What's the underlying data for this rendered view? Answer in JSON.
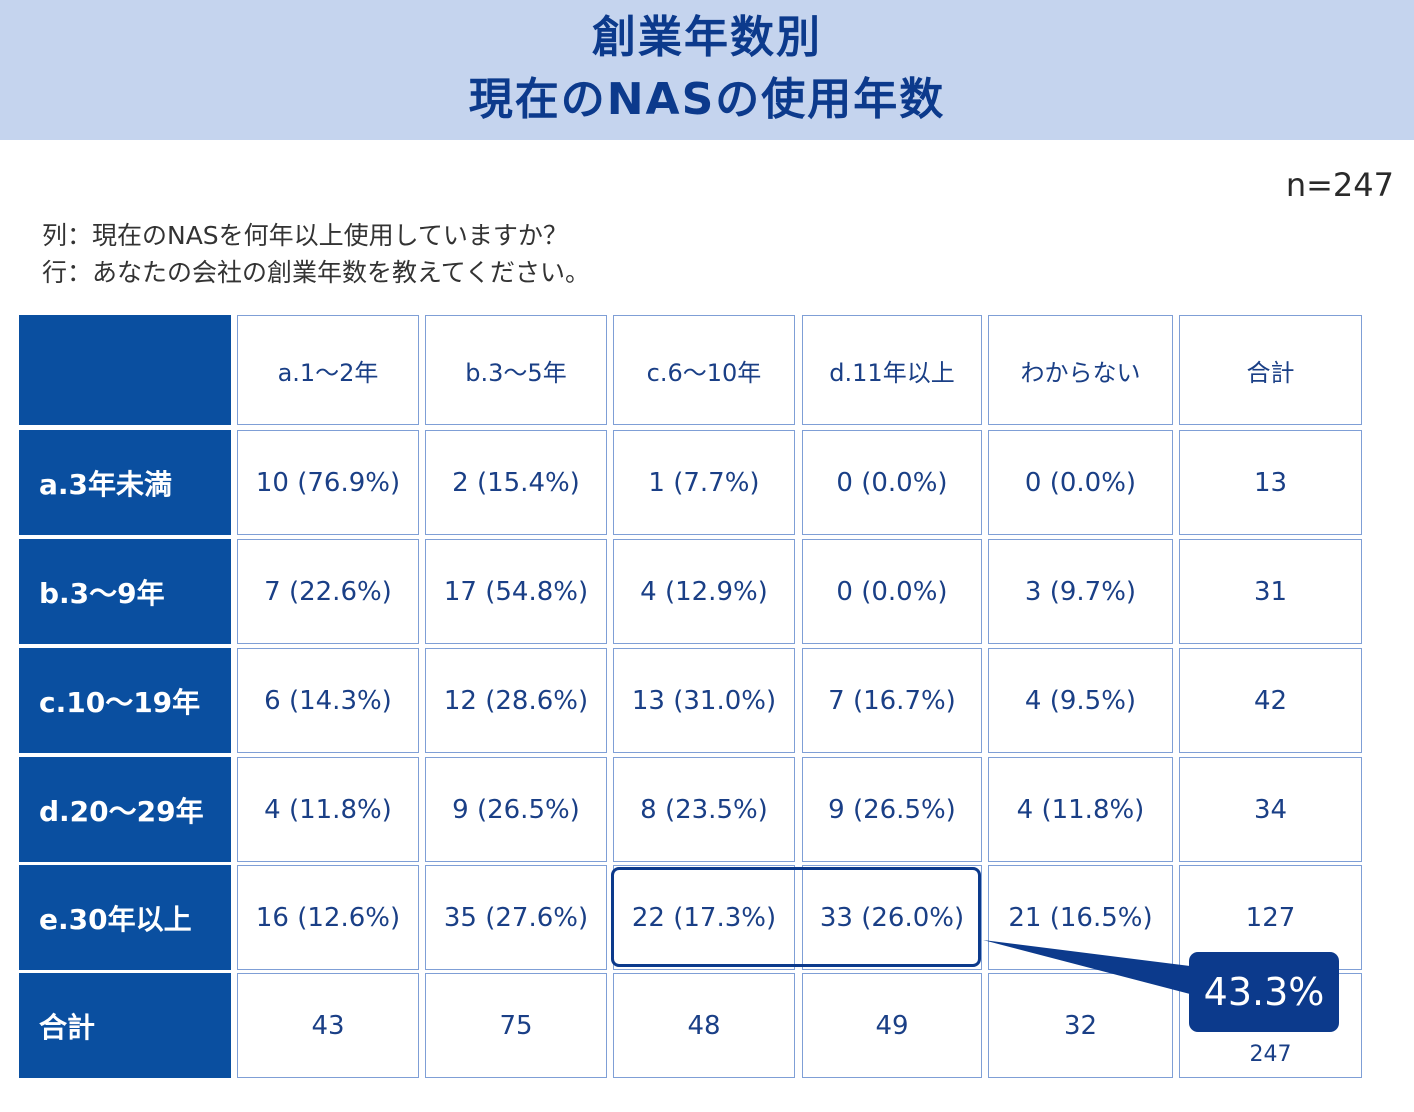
{
  "title": {
    "line1": "創業年数別",
    "line2": "現在のNASの使用年数"
  },
  "sample_size": "n=247",
  "question": {
    "columns": "列：現在のNASを何年以上使用していますか？",
    "rows": "行：あなたの会社の創業年数を教えてください。"
  },
  "colors": {
    "header_bg": "#c5d4ee",
    "title": "#0c3a8c",
    "row_header_bg": "#0a4fa0",
    "cell_text": "#1a3f86",
    "border": "#7f9fd6"
  },
  "highlight": {
    "cells": [
      "22 (17.3%)",
      "33 (26.0%)"
    ],
    "value": "43.3%"
  },
  "chart_data": {
    "type": "table",
    "col_headers": [
      "a.1〜2年",
      "b.3〜5年",
      "c.6〜10年",
      "d.11年以上",
      "わからない",
      "合計"
    ],
    "rows": [
      {
        "label": "a.3年未満",
        "cells": [
          "10 (76.9%)",
          "2 (15.4%)",
          "1 (7.7%)",
          "0 (0.0%)",
          "0 (0.0%)",
          "13"
        ]
      },
      {
        "label": "b.3〜9年",
        "cells": [
          "7 (22.6%)",
          "17 (54.8%)",
          "4 (12.9%)",
          "0 (0.0%)",
          "3 (9.7%)",
          "31"
        ]
      },
      {
        "label": "c.10〜19年",
        "cells": [
          "6 (14.3%)",
          "12 (28.6%)",
          "13 (31.0%)",
          "7 (16.7%)",
          "4 (9.5%)",
          "42"
        ]
      },
      {
        "label": "d.20〜29年",
        "cells": [
          "4 (11.8%)",
          "9 (26.5%)",
          "8 (23.5%)",
          "9 (26.5%)",
          "4 (11.8%)",
          "34"
        ]
      },
      {
        "label": "e.30年以上",
        "cells": [
          "16 (12.6%)",
          "35 (27.6%)",
          "22 (17.3%)",
          "33 (26.0%)",
          "21 (16.5%)",
          "127"
        ]
      },
      {
        "label": "合計",
        "cells": [
          "43",
          "75",
          "48",
          "49",
          "32",
          "247"
        ]
      }
    ]
  }
}
